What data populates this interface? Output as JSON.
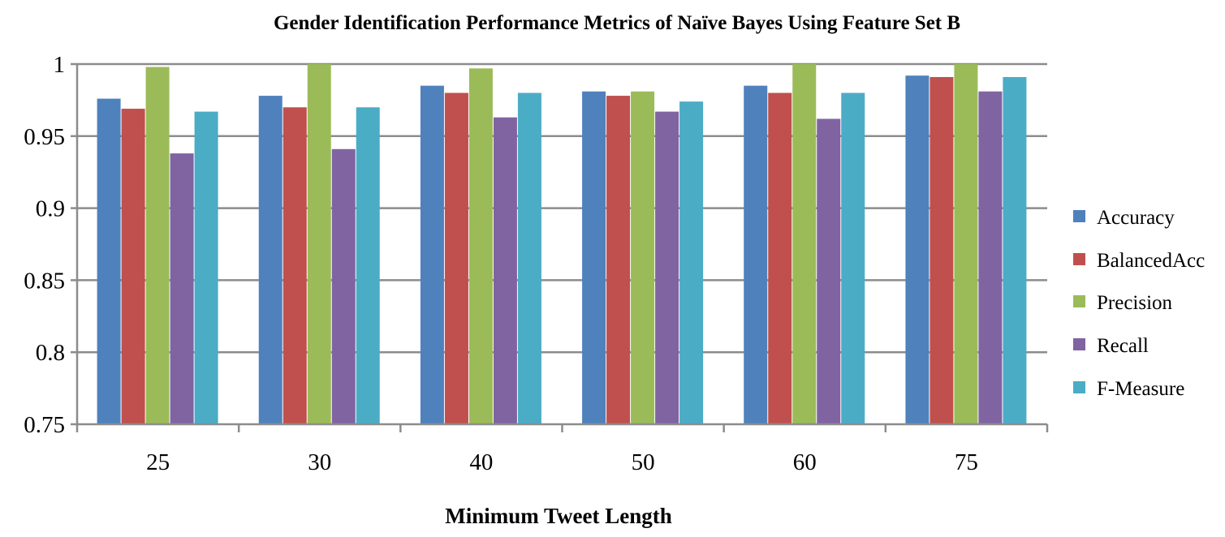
{
  "chart_data": {
    "type": "bar",
    "title": "Gender Identification Performance Metrics of Naïve Bayes Using Feature Set B",
    "xlabel": "Minimum Tweet Length",
    "ylabel": "",
    "ylim": [
      0.75,
      1
    ],
    "yticks": [
      0.75,
      0.8,
      0.85,
      0.9,
      0.95,
      1
    ],
    "ytick_labels": [
      "0.75",
      "0.8",
      "0.85",
      "0.9",
      "0.95",
      "1"
    ],
    "grid": true,
    "legend_position": "right",
    "categories": [
      "25",
      "30",
      "40",
      "50",
      "60",
      "75"
    ],
    "series": [
      {
        "name": "Accuracy",
        "color": "#4F81BD",
        "values": [
          0.976,
          0.978,
          0.985,
          0.981,
          0.985,
          0.992
        ]
      },
      {
        "name": "BalancedAcc",
        "color": "#C0504D",
        "values": [
          0.969,
          0.97,
          0.98,
          0.978,
          0.98,
          0.991
        ]
      },
      {
        "name": "Precision",
        "color": "#9BBB59",
        "values": [
          0.998,
          1.0,
          0.997,
          0.981,
          1.0,
          1.0
        ]
      },
      {
        "name": "Recall",
        "color": "#8064A2",
        "values": [
          0.938,
          0.941,
          0.963,
          0.967,
          0.962,
          0.981
        ]
      },
      {
        "name": "F-Measure",
        "color": "#4BACC6",
        "values": [
          0.967,
          0.97,
          0.98,
          0.974,
          0.98,
          0.991
        ]
      }
    ]
  }
}
